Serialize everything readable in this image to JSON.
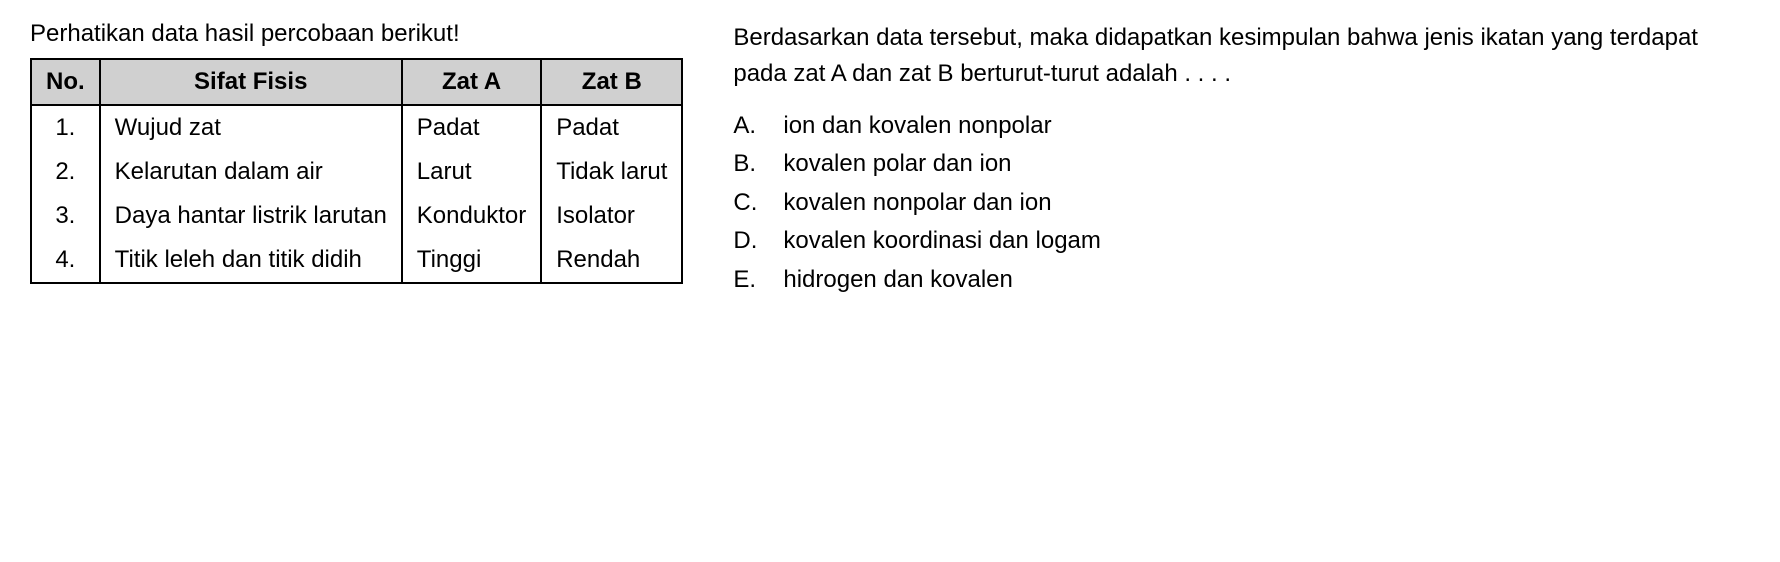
{
  "left": {
    "intro": "Perhatikan data hasil percobaan berikut!",
    "table": {
      "headers": {
        "no": "No.",
        "sifat": "Sifat Fisis",
        "zatA": "Zat A",
        "zatB": "Zat B"
      },
      "rows": [
        {
          "no": "1.",
          "sifat": "Wujud zat",
          "zatA": "Padat",
          "zatB": "Padat"
        },
        {
          "no": "2.",
          "sifat": "Kelarutan dalam air",
          "zatA": "Larut",
          "zatB": "Tidak larut"
        },
        {
          "no": "3.",
          "sifat": "Daya hantar listrik larutan",
          "zatA": "Konduktor",
          "zatB": "Isolator"
        },
        {
          "no": "4.",
          "sifat": "Titik leleh dan titik didih",
          "zatA": "Tinggi",
          "zatB": "Rendah"
        }
      ]
    }
  },
  "right": {
    "question": "Berdasarkan data tersebut, maka didapatkan kesimpulan bahwa jenis ikatan yang terdapat pada zat A dan zat B berturut-turut adalah . . . .",
    "options": [
      {
        "letter": "A.",
        "text": "ion dan kovalen nonpolar"
      },
      {
        "letter": "B.",
        "text": "kovalen polar dan ion"
      },
      {
        "letter": "C.",
        "text": "kovalen nonpolar dan ion"
      },
      {
        "letter": "D.",
        "text": "kovalen koordinasi dan logam"
      },
      {
        "letter": "E.",
        "text": "hidrogen dan kovalen"
      }
    ]
  },
  "style": {
    "header_bg": "#d0d0d0",
    "border_color": "#000000",
    "font_size": 24,
    "text_color": "#000000",
    "background_color": "#ffffff"
  }
}
